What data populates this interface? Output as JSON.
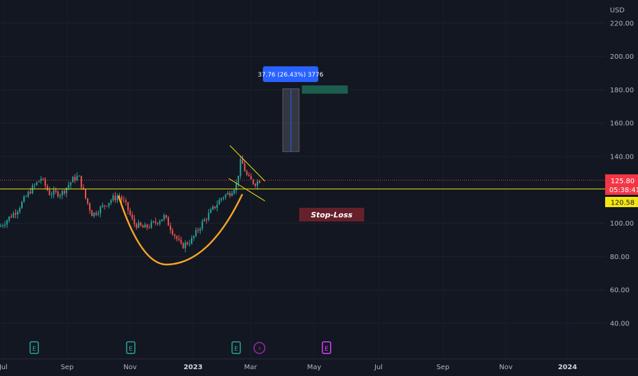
{
  "currency": "USD",
  "price_axis": {
    "ticks": [
      {
        "value": 220,
        "label": "220.00"
      },
      {
        "value": 200,
        "label": "200.00"
      },
      {
        "value": 180,
        "label": "180.00"
      },
      {
        "value": 160,
        "label": "160.00"
      },
      {
        "value": 140,
        "label": "140.00"
      },
      {
        "value": 100,
        "label": "100.00"
      },
      {
        "value": 80,
        "label": "80.00"
      },
      {
        "value": 60,
        "label": "60.00"
      },
      {
        "value": 40,
        "label": "40.00"
      }
    ],
    "range": [
      30,
      230
    ]
  },
  "time_axis": {
    "labels": [
      {
        "label": "Jul",
        "bold": false
      },
      {
        "label": "Sep",
        "bold": false
      },
      {
        "label": "Nov",
        "bold": false
      },
      {
        "label": "2023",
        "bold": true
      },
      {
        "label": "Mar",
        "bold": false
      },
      {
        "label": "May",
        "bold": false
      },
      {
        "label": "Jul",
        "bold": false
      },
      {
        "label": "Sep",
        "bold": false
      },
      {
        "label": "Nov",
        "bold": false
      },
      {
        "label": "2024",
        "bold": true
      }
    ]
  },
  "price_badge": {
    "value": "125.80",
    "countdown": "05:38:41",
    "color": "#f23645",
    "price": 125.8
  },
  "hline": {
    "value": "120.58",
    "price": 120.58,
    "color": "#f5e60f"
  },
  "measure": {
    "label": "37.76 (26.43%) 3776",
    "from": 142.9,
    "to": 180.66,
    "color": "#2962ff"
  },
  "stop_loss": {
    "label": "Stop-Loss",
    "color": "#66202a"
  },
  "target_box_color": "#1b5e4e",
  "events": [
    {
      "type": "earnings",
      "icon": "E",
      "color": "#26a69a"
    },
    {
      "type": "earnings",
      "icon": "E",
      "color": "#26a69a"
    },
    {
      "type": "earnings",
      "icon": "E",
      "color": "#26a69a"
    },
    {
      "type": "dividend",
      "icon": "⚡",
      "color": "#9c27b0"
    },
    {
      "type": "earnings-upcoming",
      "icon": "E",
      "color": "#e040fb"
    }
  ],
  "candles": {
    "up_color": "#26a69a",
    "down_color": "#ef5350",
    "anchors": [
      [
        0,
        98
      ],
      [
        10,
        102
      ],
      [
        25,
        108
      ],
      [
        45,
        120
      ],
      [
        60,
        127
      ],
      [
        72,
        118
      ],
      [
        90,
        118
      ],
      [
        108,
        127
      ],
      [
        115,
        128
      ],
      [
        125,
        115
      ],
      [
        135,
        105
      ],
      [
        150,
        110
      ],
      [
        165,
        115
      ],
      [
        175,
        116
      ],
      [
        185,
        110
      ],
      [
        195,
        100
      ],
      [
        210,
        97
      ],
      [
        225,
        100
      ],
      [
        240,
        104
      ],
      [
        255,
        93
      ],
      [
        265,
        86
      ],
      [
        280,
        90
      ],
      [
        295,
        100
      ],
      [
        310,
        108
      ],
      [
        325,
        116
      ],
      [
        335,
        118
      ],
      [
        345,
        123
      ],
      [
        352,
        138
      ],
      [
        362,
        127
      ],
      [
        372,
        124
      ],
      [
        380,
        126
      ]
    ]
  }
}
